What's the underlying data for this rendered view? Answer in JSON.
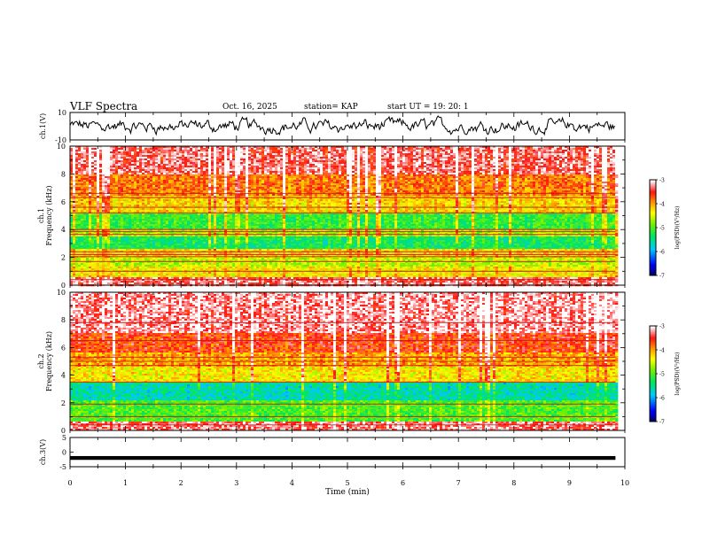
{
  "header": {
    "title": "VLF Spectra",
    "date": "Oct. 16, 2025",
    "station": "station= KAP",
    "start": "start UT =   19: 20: 1"
  },
  "chart_data": [
    {
      "type": "line",
      "panel": "ch1-waveform",
      "ylabel": "ch.1(V)",
      "ylim": [
        -10,
        10
      ],
      "y_ticks": [
        "10",
        "-10"
      ],
      "xlim": [
        0,
        10
      ],
      "series_color": "#000000",
      "y_range_observed": [
        -6,
        8
      ]
    },
    {
      "type": "heatmap",
      "panel": "ch1-spectrogram",
      "ylabel_line1": "ch.1",
      "ylabel_line2": "Frequency (kHz)",
      "ylim": [
        0,
        10
      ],
      "y_ticks": [
        "0",
        "2",
        "4",
        "6",
        "8",
        "10"
      ],
      "xlim": [
        0,
        10
      ],
      "data_end_min": 9.83,
      "colorbar": {
        "label": "log(PSD)(V²/Hz)",
        "range": [
          -7,
          -3
        ],
        "ticks": [
          "-3",
          "-4",
          "-5",
          "-6",
          "-7"
        ]
      },
      "band_levels": [
        {
          "f": [
            0,
            0.6
          ],
          "level": -3.3
        },
        {
          "f": [
            0.6,
            1.4
          ],
          "level": -4.3
        },
        {
          "f": [
            1.4,
            2.0
          ],
          "level": -4.6
        },
        {
          "f": [
            2.0,
            2.6
          ],
          "level": -4.2
        },
        {
          "f": [
            2.6,
            3.5
          ],
          "level": -5.3
        },
        {
          "f": [
            3.5,
            4.0
          ],
          "level": -4.6
        },
        {
          "f": [
            4.0,
            5.2
          ],
          "level": -5.1
        },
        {
          "f": [
            5.2,
            6.4
          ],
          "level": -4.2
        },
        {
          "f": [
            6.4,
            8.0
          ],
          "level": -3.8
        },
        {
          "f": [
            8.0,
            10.0
          ],
          "level": -3.3
        }
      ],
      "lines_khz": [
        0.4,
        1.0,
        1.7,
        2.05,
        2.2,
        2.4,
        3.65,
        3.85,
        4.0,
        5.2,
        5.6,
        6.3,
        6.6
      ]
    },
    {
      "type": "heatmap",
      "panel": "ch2-spectrogram",
      "ylabel_line1": "ch.2",
      "ylabel_line2": "Frequency (kHz)",
      "ylim": [
        0,
        10
      ],
      "y_ticks": [
        "0",
        "2",
        "4",
        "6",
        "8",
        "10"
      ],
      "xlim": [
        0,
        10
      ],
      "data_end_min": 9.83,
      "colorbar": {
        "label": "log(PSD)(V²/Hz)",
        "range": [
          -7,
          -3
        ],
        "ticks": [
          "-3",
          "-4",
          "-5",
          "-6",
          "-7"
        ]
      },
      "band_levels": [
        {
          "f": [
            0,
            0.6
          ],
          "level": -3.3
        },
        {
          "f": [
            0.6,
            2.2
          ],
          "level": -5.0
        },
        {
          "f": [
            2.2,
            3.5
          ],
          "level": -5.6
        },
        {
          "f": [
            3.5,
            4.6
          ],
          "level": -4.3
        },
        {
          "f": [
            4.6,
            5.6
          ],
          "level": -4.0
        },
        {
          "f": [
            5.6,
            7.0
          ],
          "level": -3.6
        },
        {
          "f": [
            7.0,
            10.0
          ],
          "level": -3.2
        }
      ],
      "lines_khz": [
        0.4,
        1.0,
        1.9,
        3.5,
        4.7,
        5.0,
        5.3,
        6.5,
        7.8
      ]
    },
    {
      "type": "line",
      "panel": "ch3-waveform",
      "ylabel": "ch.3(V)",
      "ylim": [
        -5,
        5
      ],
      "y_ticks": [
        "5",
        "0",
        "-5"
      ],
      "xlim": [
        0,
        10
      ],
      "x_ticks": [
        "0",
        "1",
        "2",
        "3",
        "4",
        "5",
        "6",
        "7",
        "8",
        "9",
        "10"
      ],
      "xlabel": "Time (min)",
      "trace_level_v": -2.0,
      "trace_thickness_v": 0.5,
      "series_color": "#000000"
    }
  ]
}
